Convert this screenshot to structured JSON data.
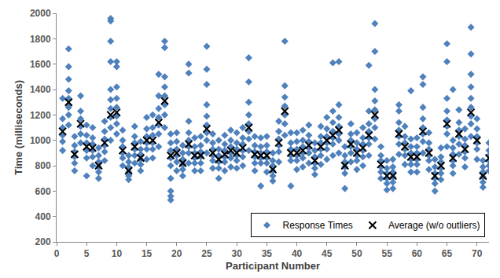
{
  "chart_data": {
    "type": "scatter",
    "x_label": "Participant Number",
    "y_label": "Time (milliseconds)",
    "xlim": [
      0,
      72
    ],
    "xticks": [
      0,
      5,
      10,
      15,
      20,
      25,
      30,
      35,
      40,
      45,
      50,
      55,
      60,
      65,
      70
    ],
    "ylim": [
      200,
      2000
    ],
    "yticks": [
      200,
      400,
      600,
      800,
      1000,
      1200,
      1400,
      1600,
      1800,
      2000
    ],
    "grid": false,
    "legend": "bottom right",
    "series": [
      {
        "name": "Response Times",
        "color": "#4f81bd",
        "marker": "diamond",
        "x": [
          1,
          1,
          1,
          1,
          1,
          1,
          2,
          2,
          2,
          2,
          2,
          2,
          3,
          3,
          3,
          3,
          3,
          3,
          4,
          4,
          4,
          4,
          4,
          4,
          5,
          5,
          5,
          5,
          5,
          5,
          6,
          6,
          6,
          6,
          6,
          6,
          7,
          7,
          7,
          7,
          7,
          7,
          8,
          8,
          8,
          8,
          8,
          8,
          9,
          9,
          9,
          9,
          9,
          9,
          10,
          10,
          10,
          10,
          10,
          10,
          11,
          11,
          11,
          11,
          11,
          11,
          12,
          12,
          12,
          12,
          12,
          12,
          13,
          13,
          13,
          13,
          13,
          13,
          14,
          14,
          14,
          14,
          14,
          14,
          15,
          15,
          15,
          15,
          15,
          15,
          16,
          16,
          16,
          16,
          16,
          16,
          17,
          17,
          17,
          17,
          17,
          17,
          18,
          18,
          18,
          18,
          18,
          18,
          19,
          19,
          19,
          19,
          19,
          19,
          20,
          20,
          20,
          20,
          20,
          20,
          21,
          21,
          21,
          21,
          21,
          21,
          22,
          22,
          22,
          22,
          22,
          22,
          23,
          23,
          23,
          23,
          23,
          23,
          24,
          24,
          24,
          24,
          24,
          24,
          25,
          25,
          25,
          25,
          25,
          25,
          26,
          26,
          26,
          26,
          26,
          26,
          27,
          27,
          27,
          27,
          27,
          27,
          28,
          28,
          28,
          28,
          28,
          28,
          29,
          29,
          29,
          29,
          29,
          29,
          30,
          30,
          30,
          30,
          30,
          30,
          31,
          31,
          31,
          31,
          31,
          31,
          32,
          32,
          32,
          32,
          32,
          32,
          33,
          33,
          33,
          33,
          33,
          33,
          34,
          34,
          34,
          34,
          34,
          34,
          35,
          35,
          35,
          35,
          35,
          35,
          36,
          36,
          36,
          36,
          36,
          36,
          37,
          37,
          37,
          37,
          37,
          37,
          38,
          38,
          38,
          38,
          38,
          38,
          39,
          39,
          39,
          39,
          39,
          39,
          40,
          40,
          40,
          40,
          40,
          40,
          41,
          41,
          41,
          41,
          41,
          41,
          42,
          42,
          42,
          42,
          42,
          42,
          43,
          43,
          43,
          43,
          43,
          43,
          44,
          44,
          44,
          44,
          44,
          44,
          45,
          45,
          45,
          45,
          45,
          45,
          46,
          46,
          46,
          46,
          46,
          46,
          47,
          47,
          47,
          47,
          47,
          47,
          48,
          48,
          48,
          48,
          48,
          48,
          49,
          49,
          49,
          49,
          49,
          49,
          50,
          50,
          50,
          50,
          50,
          50,
          51,
          51,
          51,
          51,
          51,
          51,
          52,
          52,
          52,
          52,
          52,
          52,
          53,
          53,
          53,
          53,
          53,
          53,
          54,
          54,
          54,
          54,
          54,
          54,
          55,
          55,
          55,
          55,
          55,
          55,
          56,
          56,
          56,
          56,
          56,
          56,
          57,
          57,
          57,
          57,
          57,
          57,
          58,
          58,
          58,
          58,
          58,
          58,
          59,
          59,
          59,
          59,
          59,
          59,
          60,
          60,
          60,
          60,
          60,
          60,
          61,
          61,
          61,
          61,
          61,
          61,
          62,
          62,
          62,
          62,
          62,
          62,
          63,
          63,
          63,
          63,
          63,
          63,
          64,
          64,
          64,
          64,
          64,
          64,
          65,
          65,
          65,
          65,
          65,
          65,
          66,
          66,
          66,
          66,
          66,
          66,
          67,
          67,
          67,
          67,
          67,
          67,
          68,
          68,
          68,
          68,
          68,
          68,
          69,
          69,
          69,
          69,
          69,
          69,
          70,
          70,
          70,
          70,
          70,
          70,
          71,
          71,
          71,
          71,
          71,
          71,
          72,
          72,
          72,
          72,
          72,
          72,
          2,
          2,
          2,
          9,
          9,
          9,
          9,
          10,
          10,
          17,
          18,
          18,
          19,
          19,
          19,
          22,
          22,
          25,
          25,
          25,
          32,
          32,
          38,
          46,
          47,
          52,
          53,
          53,
          57,
          59,
          61,
          61,
          65,
          65,
          66,
          69,
          69,
          69
        ],
        "values": [
          920,
          990,
          1040,
          1100,
          1170,
          1330,
          1120,
          1200,
          1260,
          1330,
          1390,
          1280,
          760,
          820,
          870,
          910,
          960,
          1030,
          980,
          1050,
          1110,
          1170,
          1230,
          1350,
          720,
          860,
          920,
          980,
          1040,
          1120,
          800,
          870,
          920,
          970,
          1020,
          1100,
          700,
          750,
          790,
          830,
          880,
          940,
          840,
          910,
          960,
          1010,
          1070,
          1150,
          1000,
          1100,
          1180,
          1250,
          1320,
          1400,
          1050,
          1130,
          1190,
          1260,
          1330,
          1420,
          800,
          860,
          900,
          950,
          1000,
          1080,
          690,
          720,
          750,
          790,
          830,
          880,
          820,
          880,
          930,
          980,
          1030,
          1110,
          760,
          810,
          850,
          890,
          930,
          990,
          850,
          930,
          980,
          1030,
          1090,
          1180,
          860,
          930,
          980,
          1040,
          1100,
          1200,
          950,
          1050,
          1120,
          1180,
          1250,
          1350,
          1100,
          1200,
          1280,
          1350,
          1420,
          1500,
          700,
          800,
          860,
          920,
          980,
          1050,
          760,
          830,
          880,
          930,
          990,
          1060,
          720,
          770,
          810,
          850,
          900,
          960,
          820,
          900,
          950,
          1000,
          1060,
          1150,
          760,
          820,
          860,
          900,
          950,
          1020,
          760,
          820,
          870,
          910,
          960,
          1030,
          900,
          1000,
          1060,
          1120,
          1190,
          1280,
          780,
          840,
          880,
          930,
          980,
          1050,
          700,
          780,
          830,
          880,
          930,
          1000,
          760,
          830,
          870,
          920,
          970,
          1040,
          790,
          860,
          900,
          950,
          1000,
          1080,
          780,
          840,
          880,
          930,
          980,
          1060,
          800,
          870,
          920,
          970,
          1020,
          1100,
          920,
          1010,
          1070,
          1130,
          1200,
          1300,
          760,
          820,
          870,
          910,
          960,
          1030,
          640,
          820,
          860,
          900,
          950,
          1020,
          750,
          820,
          860,
          910,
          960,
          1030,
          680,
          720,
          760,
          800,
          840,
          900,
          830,
          910,
          960,
          1010,
          1070,
          1150,
          1040,
          1130,
          1200,
          1270,
          1340,
          1430,
          640,
          840,
          880,
          930,
          980,
          1060,
          770,
          840,
          880,
          930,
          990,
          1060,
          790,
          860,
          900,
          950,
          1000,
          1080,
          820,
          900,
          940,
          990,
          1040,
          1120,
          730,
          780,
          820,
          870,
          920,
          980,
          810,
          880,
          930,
          980,
          1030,
          1110,
          850,
          930,
          980,
          1030,
          1090,
          1180,
          880,
          970,
          1020,
          1070,
          1140,
          1230,
          900,
          1000,
          1050,
          1110,
          1180,
          1280,
          620,
          740,
          790,
          830,
          880,
          950,
          830,
          900,
          950,
          1000,
          1050,
          1130,
          770,
          840,
          880,
          930,
          980,
          1060,
          800,
          870,
          920,
          970,
          1020,
          1100,
          880,
          970,
          1020,
          1070,
          1130,
          1230,
          1010,
          1100,
          1170,
          1240,
          1310,
          1400,
          700,
          750,
          790,
          840,
          880,
          950,
          610,
          660,
          700,
          740,
          780,
          840,
          620,
          670,
          710,
          750,
          790,
          850,
          890,
          970,
          1030,
          1080,
          1140,
          1230,
          810,
          880,
          930,
          980,
          1030,
          1110,
          750,
          810,
          850,
          900,
          950,
          1010,
          750,
          810,
          850,
          900,
          950,
          1020,
          900,
          990,
          1050,
          1100,
          1170,
          1260,
          770,
          840,
          880,
          930,
          980,
          1060,
          600,
          660,
          700,
          740,
          790,
          850,
          690,
          740,
          780,
          830,
          870,
          940,
          950,
          1050,
          1110,
          1160,
          1230,
          1330,
          740,
          800,
          840,
          890,
          940,
          1000,
          890,
          970,
          1030,
          1080,
          1140,
          1240,
          790,
          860,
          910,
          960,
          1010,
          1090,
          1030,
          1130,
          1190,
          1260,
          1330,
          1420,
          850,
          930,
          980,
          1030,
          1090,
          1170,
          630,
          670,
          710,
          750,
          790,
          840,
          760,
          800,
          840,
          880,
          920,
          980,
          1720,
          1580,
          1480,
          1960,
          1940,
          1780,
          1620,
          1620,
          1580,
          1520,
          1780,
          1730,
          560,
          530,
          600,
          1600,
          1530,
          1740,
          1560,
          1440,
          1650,
          1460,
          1780,
          1610,
          1620,
          1590,
          1920,
          1700,
          1280,
          1390,
          1500,
          1440,
          1760,
          1620,
          1400,
          1890,
          1680,
          1520
        ]
      },
      {
        "name": "Average (w/o outliers)",
        "color": "#000000",
        "marker": "x",
        "x": [
          1,
          2,
          3,
          4,
          5,
          6,
          7,
          8,
          9,
          10,
          11,
          12,
          13,
          14,
          15,
          16,
          17,
          18,
          19,
          20,
          21,
          22,
          23,
          24,
          25,
          26,
          27,
          28,
          29,
          30,
          31,
          32,
          33,
          34,
          35,
          36,
          37,
          38,
          39,
          40,
          41,
          42,
          43,
          44,
          45,
          46,
          47,
          48,
          49,
          50,
          51,
          52,
          53,
          54,
          55,
          56,
          57,
          58,
          59,
          60,
          61,
          62,
          63,
          64,
          65,
          66,
          67,
          68,
          69,
          70,
          71,
          72
        ],
        "values": [
          1070,
          1300,
          890,
          1130,
          950,
          940,
          800,
          980,
          1200,
          1220,
          920,
          760,
          950,
          860,
          1000,
          1000,
          1140,
          1310,
          880,
          900,
          820,
          970,
          880,
          880,
          1090,
          900,
          850,
          890,
          920,
          900,
          940,
          1100,
          890,
          880,
          880,
          770,
          980,
          1230,
          900,
          900,
          920,
          960,
          840,
          950,
          1000,
          1040,
          1080,
          800,
          970,
          900,
          940,
          1040,
          1200,
          810,
          720,
          720,
          1050,
          950,
          870,
          870,
          1070,
          900,
          720,
          800,
          1130,
          860,
          1050,
          930,
          1220,
          1000,
          720,
          860
        ]
      }
    ]
  }
}
